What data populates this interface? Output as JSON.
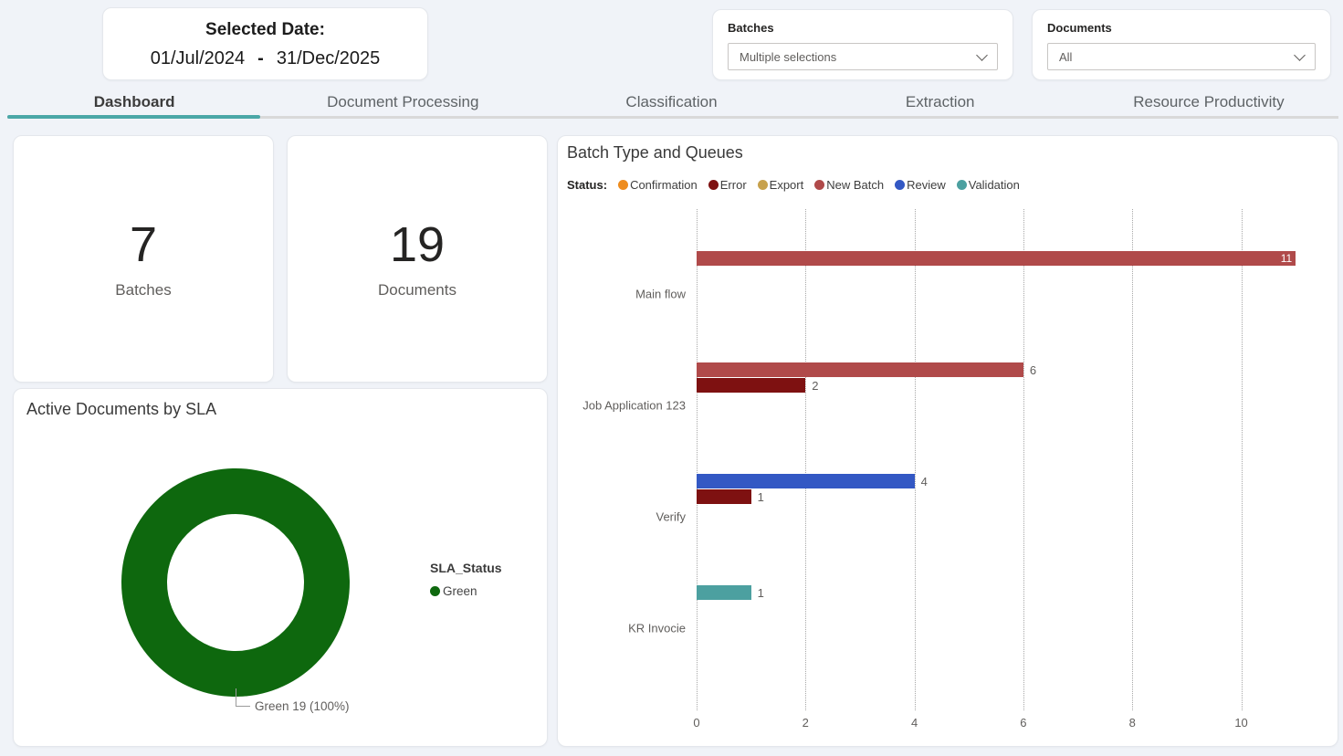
{
  "theme": {
    "accent": "#4BA7A7",
    "page_bg": "#F0F3F8",
    "card_bg": "#FFFFFF"
  },
  "filters": {
    "date": {
      "title": "Selected Date:",
      "start": "01/Jul/2024",
      "separator": "-",
      "end": "31/Dec/2025"
    },
    "batches": {
      "label": "Batches",
      "value": "Multiple selections"
    },
    "documents": {
      "label": "Documents",
      "value": "All"
    }
  },
  "tabs": {
    "active": "Dashboard",
    "items": [
      "Dashboard",
      "Document Processing",
      "Classification",
      "Extraction",
      "Resource Productivity"
    ]
  },
  "kpis": [
    {
      "value": "7",
      "label": "Batches"
    },
    {
      "value": "19",
      "label": "Documents"
    }
  ],
  "chart_data": [
    {
      "type": "pie",
      "variant": "donut",
      "title": "Active Documents by SLA",
      "legend_title": "SLA_Status",
      "legend_position": "right",
      "labels": [
        "Green"
      ],
      "values": [
        19
      ],
      "percent": [
        "100%"
      ],
      "colors": [
        "#0E680E"
      ],
      "callout_label": "Green 19 (100%)"
    },
    {
      "type": "bar",
      "orientation": "horizontal",
      "title": "Batch Type and Queues",
      "legend_title": "Status:",
      "legend_position": "top",
      "grid": "vertical-dotted",
      "series": [
        {
          "name": "Confirmation",
          "color": "#EE8C1E"
        },
        {
          "name": "Error",
          "color": "#7E1111"
        },
        {
          "name": "Export",
          "color": "#C7A14C"
        },
        {
          "name": "New Batch",
          "color": "#B04A4A"
        },
        {
          "name": "Review",
          "color": "#3358C4"
        },
        {
          "name": "Validation",
          "color": "#4CA0A0"
        }
      ],
      "categories": [
        "Main flow",
        "Job Application 123",
        "Verify",
        "KR Invocie"
      ],
      "xlim": [
        0,
        11.6
      ],
      "xticks": [
        0,
        2,
        4,
        6,
        8,
        10
      ],
      "groups": [
        {
          "label": "Main flow",
          "bars": [
            {
              "series": "New Batch",
              "value": 11,
              "color": "#B04A4A",
              "label": "11",
              "label_inside": true
            }
          ]
        },
        {
          "label": "Job Application 123",
          "bars": [
            {
              "series": "New Batch",
              "value": 6,
              "color": "#B04A4A",
              "label": "6"
            },
            {
              "series": "Error",
              "value": 2,
              "color": "#7E1111",
              "label": "2"
            }
          ]
        },
        {
          "label": "Verify",
          "bars": [
            {
              "series": "Review",
              "value": 4,
              "color": "#3358C4",
              "label": "4"
            },
            {
              "series": "Error",
              "value": 1,
              "color": "#7E1111",
              "label": "1"
            }
          ]
        },
        {
          "label": "KR Invocie",
          "bars": [
            {
              "series": "Validation",
              "value": 1,
              "color": "#4CA0A0",
              "label": "1"
            }
          ]
        }
      ]
    }
  ]
}
